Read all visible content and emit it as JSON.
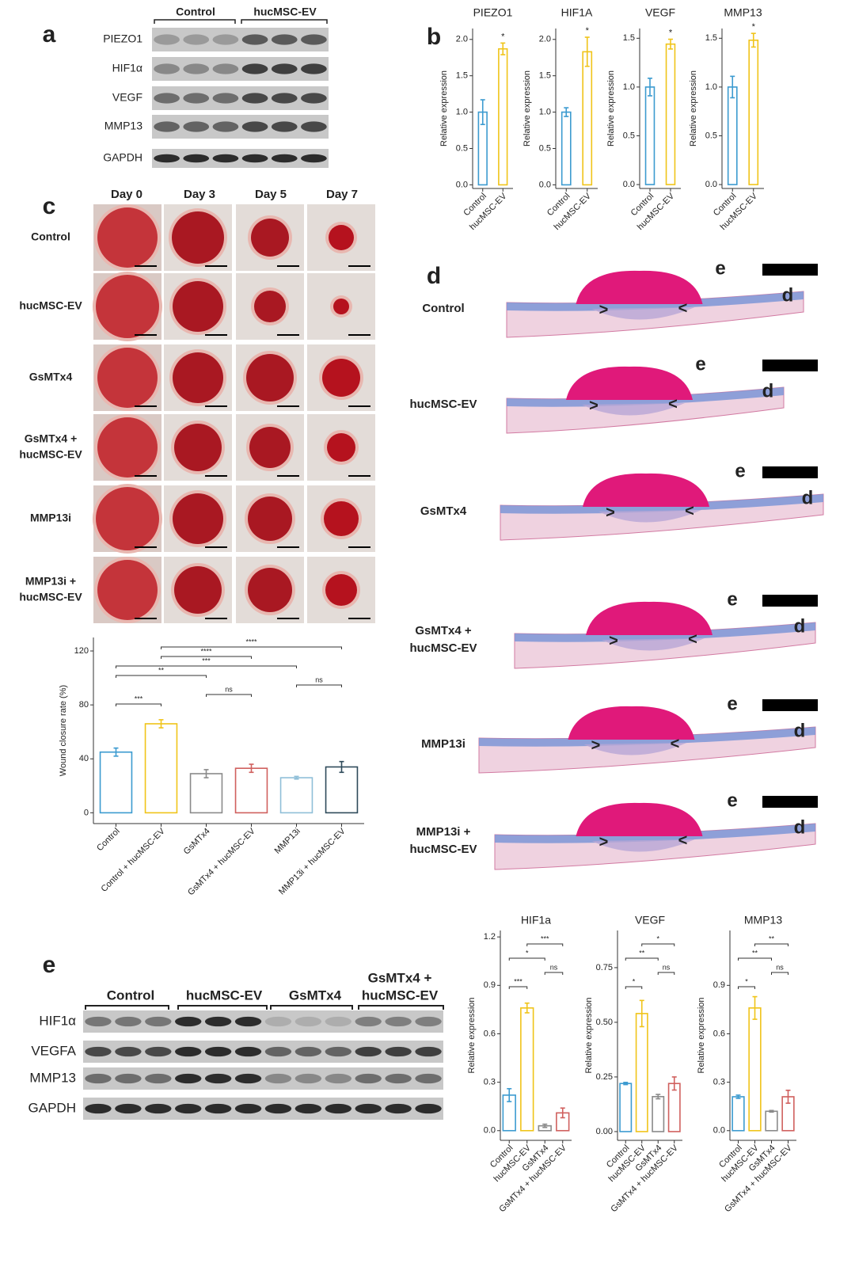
{
  "panels": {
    "a": {
      "letter": "a",
      "groups": [
        "Control",
        "hucMSC-EV"
      ],
      "proteins": [
        "PIEZO1",
        "HIF1α",
        "VEGF",
        "MMP13",
        "GAPDH"
      ]
    },
    "b": {
      "letter": "b"
    },
    "c": {
      "letter": "c",
      "days": [
        "Day 0",
        "Day 3",
        "Day 5",
        "Day 7"
      ],
      "groups": [
        [
          "Control"
        ],
        [
          "hucMSC-EV"
        ],
        [
          "GsMTx4"
        ],
        [
          "GsMTx4 +",
          "hucMSC-EV"
        ],
        [
          "MMP13i"
        ],
        [
          "MMP13i +",
          "hucMSC-EV"
        ]
      ]
    },
    "d": {
      "letter": "d",
      "groups": [
        [
          "Control"
        ],
        [
          "hucMSC-EV"
        ],
        [
          "GsMTx4"
        ],
        [
          "GsMTx4 +",
          "hucMSC-EV"
        ],
        [
          "MMP13i"
        ],
        [
          "MMP13i +",
          "hucMSC-EV"
        ]
      ],
      "layers": [
        "e",
        "d"
      ],
      "edges": [
        ">",
        "<"
      ]
    },
    "e": {
      "letter": "e",
      "groups": [
        [
          "Control"
        ],
        [
          "hucMSC-EV"
        ],
        [
          "GsMTx4"
        ],
        [
          "GsMTx4 +",
          "hucMSC-EV"
        ]
      ],
      "proteins": [
        "HIF1α",
        "VEGFA",
        "MMP13",
        "GAPDH"
      ]
    }
  },
  "chart_data": [
    {
      "type": "bar",
      "title": "PIEZO1",
      "ylabel": "Relative expression",
      "categories": [
        "Control",
        "hucMSC-EV"
      ],
      "values": [
        1.0,
        1.87
      ],
      "errors": [
        0.17,
        0.08
      ],
      "colors": [
        "#3c9bd0",
        "#f0c419"
      ],
      "ylim": [
        -0.05,
        2.15
      ],
      "yticks": [
        {
          "value": 0,
          "label": "0.0"
        },
        0.5,
        {
          "value": 1,
          "label": "1.0"
        },
        1.5,
        {
          "value": 2,
          "label": "2.0"
        }
      ],
      "annotation": {
        "index": 1,
        "label": "*"
      }
    },
    {
      "type": "bar",
      "title": "HIF1A",
      "ylabel": "Relative expression",
      "categories": [
        "Control",
        "hucMSC-EV"
      ],
      "values": [
        1.0,
        1.83
      ],
      "errors": [
        0.06,
        0.2
      ],
      "colors": [
        "#3c9bd0",
        "#f0c419"
      ],
      "ylim": [
        -0.05,
        2.15
      ],
      "yticks": [
        {
          "value": 0,
          "label": "0.0"
        },
        0.5,
        {
          "value": 1,
          "label": "1.0"
        },
        1.5,
        {
          "value": 2,
          "label": "2.0"
        }
      ],
      "annotation": {
        "index": 1,
        "label": "*"
      }
    },
    {
      "type": "bar",
      "title": "VEGF",
      "ylabel": "Relative expression",
      "categories": [
        "Control",
        "hucMSC-EV"
      ],
      "values": [
        1.0,
        1.44
      ],
      "errors": [
        0.09,
        0.05
      ],
      "colors": [
        "#3c9bd0",
        "#f0c419"
      ],
      "ylim": [
        -0.04,
        1.6
      ],
      "yticks": [
        {
          "value": 0,
          "label": "0.0"
        },
        0.5,
        {
          "value": 1,
          "label": "1.0"
        },
        1.5
      ],
      "annotation": {
        "index": 1,
        "label": "*"
      }
    },
    {
      "type": "bar",
      "title": "MMP13",
      "ylabel": "Relative expression",
      "categories": [
        "Control",
        "hucMSC-EV"
      ],
      "values": [
        1.0,
        1.48
      ],
      "errors": [
        0.11,
        0.07
      ],
      "colors": [
        "#3c9bd0",
        "#f0c419"
      ],
      "ylim": [
        -0.04,
        1.6
      ],
      "yticks": [
        {
          "value": 0,
          "label": "0.0"
        },
        0.5,
        {
          "value": 1,
          "label": "1.0"
        },
        1.5
      ],
      "annotation": {
        "index": 1,
        "label": "*"
      }
    },
    {
      "type": "bar",
      "ylabel": "Wound closure rate (%)",
      "categories": [
        "Control",
        "Control + hucMSC-EV",
        "GsMTx4",
        "GsMTx4 + hucMSC-EV",
        "MMP13i",
        "MMP13i + hucMSC-EV"
      ],
      "values": [
        45,
        66,
        29,
        33,
        26,
        34
      ],
      "errors": [
        3,
        3,
        3,
        3,
        1,
        4
      ],
      "colors": [
        "#3c9bd0",
        "#f0c419",
        "#8a8a8a",
        "#d0605e",
        "#8fbfd8",
        "#2e4a5a"
      ],
      "ylim": [
        -8,
        130
      ],
      "yticks": [
        0,
        40,
        80,
        120
      ],
      "comparisons": [
        {
          "groups": [
            1,
            5
          ],
          "label": "****"
        },
        {
          "groups": [
            1,
            3
          ],
          "label": "****"
        },
        {
          "groups": [
            0,
            4
          ],
          "label": "***"
        },
        {
          "groups": [
            0,
            2
          ],
          "label": "**"
        },
        {
          "groups": [
            4,
            5
          ],
          "label": "ns"
        },
        {
          "groups": [
            2,
            3
          ],
          "label": "ns"
        },
        {
          "groups": [
            0,
            1
          ],
          "label": "***"
        }
      ]
    },
    {
      "type": "bar",
      "title": "HIF1a",
      "ylabel": "Relative expression",
      "categories": [
        "Control",
        "hucMSC-EV",
        "GsMTx4",
        "GsMTx4 + hucMSC-EV"
      ],
      "values": [
        0.22,
        0.76,
        0.03,
        0.11
      ],
      "errors": [
        0.04,
        0.03,
        0.01,
        0.03
      ],
      "colors": [
        "#3c9bd0",
        "#f0c419",
        "#8a8a8a",
        "#d0605e"
      ],
      "ylim": [
        -0.06,
        1.24
      ],
      "yticks": [
        {
          "value": 0,
          "label": "0.0"
        },
        0.3,
        0.6,
        0.9,
        1.2
      ],
      "comparisons": [
        {
          "groups": [
            1,
            3
          ],
          "label": "***"
        },
        {
          "groups": [
            0,
            2
          ],
          "label": "*"
        },
        {
          "groups": [
            2,
            3
          ],
          "label": "ns"
        },
        {
          "groups": [
            0,
            1
          ],
          "label": "***"
        }
      ]
    },
    {
      "type": "bar",
      "title": "VEGF",
      "ylabel": "Relative expression",
      "categories": [
        "Control",
        "hucMSC-EV",
        "GsMTx4",
        "GsMTx4 + hucMSC-EV"
      ],
      "values": [
        0.22,
        0.54,
        0.16,
        0.22
      ],
      "errors": [
        0.005,
        0.06,
        0.01,
        0.03
      ],
      "colors": [
        "#3c9bd0",
        "#f0c419",
        "#8a8a8a",
        "#d0605e"
      ],
      "ylim": [
        -0.04,
        0.92
      ],
      "yticks": [
        {
          "value": 0,
          "label": "0.00"
        },
        0.25,
        {
          "value": 0.5,
          "label": "0.50"
        },
        0.75
      ],
      "comparisons": [
        {
          "groups": [
            1,
            3
          ],
          "label": "*"
        },
        {
          "groups": [
            0,
            2
          ],
          "label": "**"
        },
        {
          "groups": [
            2,
            3
          ],
          "label": "ns"
        },
        {
          "groups": [
            0,
            1
          ],
          "label": "*"
        }
      ]
    },
    {
      "type": "bar",
      "title": "MMP13",
      "ylabel": "Relative expression",
      "categories": [
        "Control",
        "hucMSC-EV",
        "GsMTx4",
        "GsMTx4 + hucMSC-EV"
      ],
      "values": [
        0.21,
        0.76,
        0.12,
        0.21
      ],
      "errors": [
        0.01,
        0.07,
        0.005,
        0.04
      ],
      "colors": [
        "#3c9bd0",
        "#f0c419",
        "#8a8a8a",
        "#d0605e"
      ],
      "ylim": [
        -0.06,
        1.24
      ],
      "yticks": [
        {
          "value": 0,
          "label": "0.0"
        },
        0.3,
        0.6,
        0.9
      ],
      "comparisons": [
        {
          "groups": [
            1,
            3
          ],
          "label": "**"
        },
        {
          "groups": [
            0,
            2
          ],
          "label": "**"
        },
        {
          "groups": [
            2,
            3
          ],
          "label": "ns"
        },
        {
          "groups": [
            0,
            1
          ],
          "label": "*"
        }
      ]
    }
  ]
}
